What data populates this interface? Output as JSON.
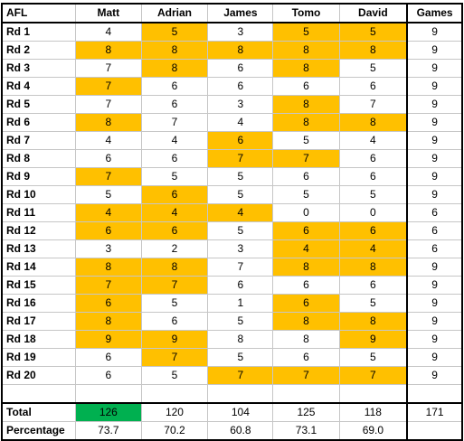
{
  "header": {
    "corner": "AFL",
    "players": [
      "Matt",
      "Adrian",
      "James",
      "Tomo",
      "David"
    ],
    "games": "Games"
  },
  "rounds": [
    {
      "label": "Rd 1",
      "scores": [
        "4",
        "5",
        "3",
        "5",
        "5"
      ],
      "highlight": [
        false,
        true,
        false,
        true,
        true
      ],
      "games": "9"
    },
    {
      "label": "Rd 2",
      "scores": [
        "8",
        "8",
        "8",
        "8",
        "8"
      ],
      "highlight": [
        true,
        true,
        true,
        true,
        true
      ],
      "games": "9"
    },
    {
      "label": "Rd 3",
      "scores": [
        "7",
        "8",
        "6",
        "8",
        "5"
      ],
      "highlight": [
        false,
        true,
        false,
        true,
        false
      ],
      "games": "9"
    },
    {
      "label": "Rd 4",
      "scores": [
        "7",
        "6",
        "6",
        "6",
        "6"
      ],
      "highlight": [
        true,
        false,
        false,
        false,
        false
      ],
      "games": "9"
    },
    {
      "label": "Rd 5",
      "scores": [
        "7",
        "6",
        "3",
        "8",
        "7"
      ],
      "highlight": [
        false,
        false,
        false,
        true,
        false
      ],
      "games": "9"
    },
    {
      "label": "Rd 6",
      "scores": [
        "8",
        "7",
        "4",
        "8",
        "8"
      ],
      "highlight": [
        true,
        false,
        false,
        true,
        true
      ],
      "games": "9"
    },
    {
      "label": "Rd 7",
      "scores": [
        "4",
        "4",
        "6",
        "5",
        "4"
      ],
      "highlight": [
        false,
        false,
        true,
        false,
        false
      ],
      "games": "9"
    },
    {
      "label": "Rd 8",
      "scores": [
        "6",
        "6",
        "7",
        "7",
        "6"
      ],
      "highlight": [
        false,
        false,
        true,
        true,
        false
      ],
      "games": "9"
    },
    {
      "label": "Rd 9",
      "scores": [
        "7",
        "5",
        "5",
        "6",
        "6"
      ],
      "highlight": [
        true,
        false,
        false,
        false,
        false
      ],
      "games": "9"
    },
    {
      "label": "Rd 10",
      "scores": [
        "5",
        "6",
        "5",
        "5",
        "5"
      ],
      "highlight": [
        false,
        true,
        false,
        false,
        false
      ],
      "games": "9"
    },
    {
      "label": "Rd 11",
      "scores": [
        "4",
        "4",
        "4",
        "0",
        "0"
      ],
      "highlight": [
        true,
        true,
        true,
        false,
        false
      ],
      "games": "6"
    },
    {
      "label": "Rd 12",
      "scores": [
        "6",
        "6",
        "5",
        "6",
        "6"
      ],
      "highlight": [
        true,
        true,
        false,
        true,
        true
      ],
      "games": "6"
    },
    {
      "label": "Rd 13",
      "scores": [
        "3",
        "2",
        "3",
        "4",
        "4"
      ],
      "highlight": [
        false,
        false,
        false,
        true,
        true
      ],
      "games": "6"
    },
    {
      "label": "Rd 14",
      "scores": [
        "8",
        "8",
        "7",
        "8",
        "8"
      ],
      "highlight": [
        true,
        true,
        false,
        true,
        true
      ],
      "games": "9"
    },
    {
      "label": "Rd 15",
      "scores": [
        "7",
        "7",
        "6",
        "6",
        "6"
      ],
      "highlight": [
        true,
        true,
        false,
        false,
        false
      ],
      "games": "9"
    },
    {
      "label": "Rd 16",
      "scores": [
        "6",
        "5",
        "1",
        "6",
        "5"
      ],
      "highlight": [
        true,
        false,
        false,
        true,
        false
      ],
      "games": "9"
    },
    {
      "label": "Rd 17",
      "scores": [
        "8",
        "6",
        "5",
        "8",
        "8"
      ],
      "highlight": [
        true,
        false,
        false,
        true,
        true
      ],
      "games": "9"
    },
    {
      "label": "Rd 18",
      "scores": [
        "9",
        "9",
        "8",
        "8",
        "9"
      ],
      "highlight": [
        true,
        true,
        false,
        false,
        true
      ],
      "games": "9"
    },
    {
      "label": "Rd 19",
      "scores": [
        "6",
        "7",
        "5",
        "6",
        "5"
      ],
      "highlight": [
        false,
        true,
        false,
        false,
        false
      ],
      "games": "9"
    },
    {
      "label": "Rd 20",
      "scores": [
        "6",
        "5",
        "7",
        "7",
        "7"
      ],
      "highlight": [
        false,
        false,
        true,
        true,
        true
      ],
      "games": "9"
    }
  ],
  "total": {
    "label": "Total",
    "values": [
      "126",
      "120",
      "104",
      "125",
      "118"
    ],
    "best": [
      true,
      false,
      false,
      false,
      false
    ],
    "games": "171"
  },
  "percentage": {
    "label": "Percentage",
    "values": [
      "73.7",
      "70.2",
      "60.8",
      "73.1",
      "69.0"
    ]
  },
  "colors": {
    "highlight": "#ffc000",
    "best": "#00b050",
    "grid": "#c6c6c6",
    "border": "#000000"
  }
}
